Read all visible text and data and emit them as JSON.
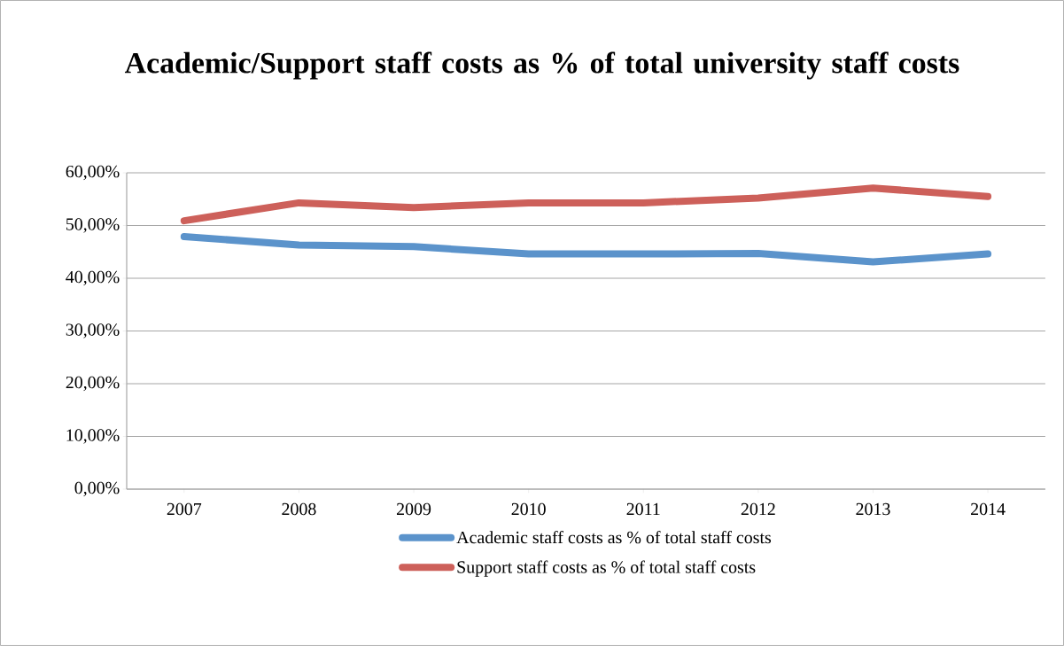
{
  "chart_data": {
    "type": "line",
    "title": "Academic/Support staff costs as % of total university staff costs",
    "categories": [
      "2007",
      "2008",
      "2009",
      "2010",
      "2011",
      "2012",
      "2013",
      "2014"
    ],
    "series": [
      {
        "name": "Academic staff costs as % of total staff costs",
        "color": "#5b93cb",
        "values": [
          47.9,
          46.3,
          46.0,
          44.6,
          44.6,
          44.7,
          43.1,
          44.6
        ]
      },
      {
        "name": "Support staff costs as % of total staff costs",
        "color": "#cd605a",
        "values": [
          50.9,
          54.3,
          53.4,
          54.3,
          54.3,
          55.2,
          57.1,
          55.5
        ]
      }
    ],
    "ylim": [
      0,
      60
    ],
    "yticks": [
      {
        "value": 0,
        "label": "0,00%"
      },
      {
        "value": 10,
        "label": "10,00%"
      },
      {
        "value": 20,
        "label": "20,00%"
      },
      {
        "value": 30,
        "label": "30,00%"
      },
      {
        "value": 40,
        "label": "40,00%"
      },
      {
        "value": 50,
        "label": "50,00%"
      },
      {
        "value": 60,
        "label": "60,00%"
      }
    ],
    "grid": "y",
    "legend": "bottom",
    "marker": "none",
    "line_style": "solid"
  }
}
